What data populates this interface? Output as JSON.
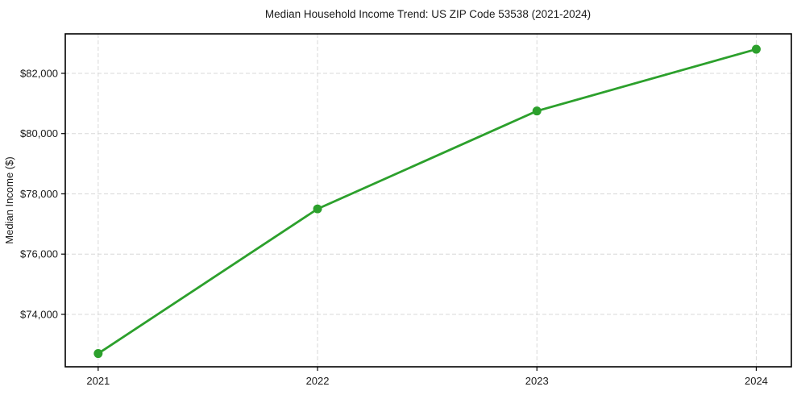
{
  "chart_data": {
    "type": "line",
    "title": "Median Household Income Trend: US ZIP Code 53538 (2021-2024)",
    "xlabel": "",
    "ylabel": "Median Income ($)",
    "x": [
      2021,
      2022,
      2023,
      2024
    ],
    "xtick_labels": [
      "2021",
      "2022",
      "2023",
      "2024"
    ],
    "series": [
      {
        "name": "Median Household Income",
        "values": [
          72700,
          77500,
          80750,
          82800
        ],
        "color": "#2ca02c",
        "marker": "circle"
      }
    ],
    "yticks": [
      74000,
      76000,
      78000,
      80000,
      82000
    ],
    "ytick_labels": [
      "$74,000",
      "$76,000",
      "$78,000",
      "$80,000",
      "$82,000"
    ],
    "ylim": [
      72260,
      83310
    ],
    "xlim": [
      2020.85,
      2024.16
    ],
    "grid": true,
    "grid_style": "dashed",
    "legend_position": "none",
    "colors": {
      "line": "#2ca02c",
      "grid": "#d8d8d8",
      "spine": "#000000",
      "text": "#1a1a1a",
      "background": "#ffffff"
    }
  }
}
